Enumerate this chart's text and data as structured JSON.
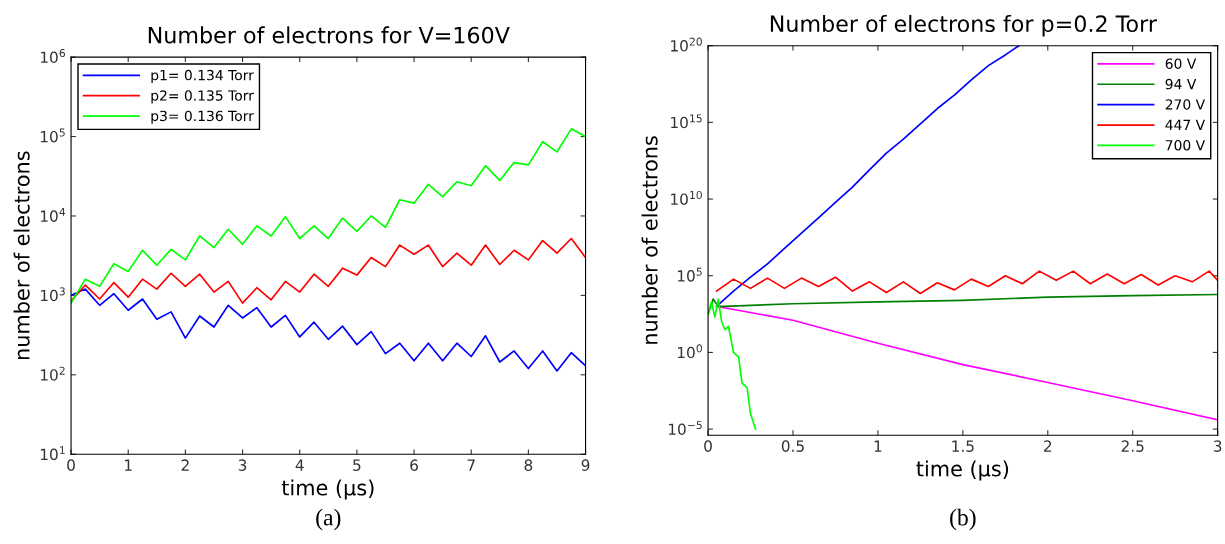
{
  "chart_data": [
    {
      "type": "line",
      "title": "Number of electrons for V=160V",
      "xlabel": "time (μs)",
      "ylabel": "number of electrons",
      "annotations": [
        "(a)"
      ],
      "log": "y",
      "grid": false,
      "legend": "top left",
      "line_style": "solid",
      "marker": "none",
      "xlim": [
        0,
        9
      ],
      "xticks": [
        0,
        1,
        2,
        3,
        4,
        5,
        6,
        7,
        8,
        9
      ],
      "ylim": [
        10,
        1000000
      ],
      "yticks": [
        {
          "value": 10,
          "label": "10$^{1}$"
        },
        {
          "value": 100,
          "label": "10$^{2}$"
        },
        {
          "value": 1000,
          "label": "10$^{3}$"
        },
        {
          "value": 10000,
          "label": "10$^{4}$"
        },
        {
          "value": 100000,
          "label": "10$^{5}$"
        },
        {
          "value": 1000000,
          "label": "10$^{6}$"
        }
      ],
      "x": [
        0,
        0.25,
        0.5,
        0.75,
        1,
        1.25,
        1.5,
        1.75,
        2,
        2.25,
        2.5,
        2.75,
        3,
        3.25,
        3.5,
        3.75,
        4,
        4.25,
        4.5,
        4.75,
        5,
        5.25,
        5.5,
        5.75,
        6,
        6.25,
        6.5,
        6.75,
        7,
        7.25,
        7.5,
        7.75,
        8,
        8.25,
        8.5,
        8.75,
        9
      ],
      "series": [
        {
          "name": "p1= 0.134 Torr",
          "color": "#0000ff",
          "values": [
            1000,
            1200,
            750,
            1050,
            650,
            900,
            500,
            620,
            290,
            550,
            400,
            750,
            520,
            700,
            400,
            560,
            300,
            460,
            280,
            410,
            240,
            350,
            185,
            250,
            150,
            250,
            150,
            250,
            170,
            310,
            145,
            200,
            120,
            200,
            112,
            190,
            130
          ]
        },
        {
          "name": "p2= 0.135 Torr",
          "color": "#ff0000",
          "values": [
            850,
            1350,
            900,
            1450,
            950,
            1600,
            1200,
            1900,
            1300,
            1850,
            1100,
            1500,
            800,
            1250,
            880,
            1500,
            1100,
            1850,
            1300,
            2200,
            1800,
            3000,
            2300,
            4300,
            3300,
            4300,
            2300,
            3400,
            2400,
            4300,
            2450,
            3700,
            2800,
            4900,
            3400,
            5200,
            3000
          ]
        },
        {
          "name": "p3= 0.136 Torr",
          "color": "#00ff00",
          "values": [
            800,
            1600,
            1300,
            2500,
            2000,
            3700,
            2400,
            3800,
            2800,
            5600,
            4000,
            6800,
            4400,
            7500,
            5600,
            9800,
            5200,
            7500,
            5200,
            9400,
            6400,
            10000,
            7200,
            16000,
            14500,
            25000,
            17500,
            27000,
            24000,
            43000,
            28000,
            47000,
            44000,
            86000,
            64000,
            125000,
            100000
          ]
        }
      ]
    },
    {
      "type": "line",
      "title": "Number of electrons for p=0.2 Torr",
      "xlabel": "time (μs)",
      "ylabel": "number of electrons",
      "annotations": [
        "(b)"
      ],
      "log": "y",
      "grid": false,
      "legend": "top right",
      "line_style": "solid",
      "marker": "none",
      "xlim": [
        0,
        3
      ],
      "xticks": [
        0,
        0.5,
        1,
        1.5,
        2,
        2.5,
        3
      ],
      "ylim": [
        4e-06,
        1e+20
      ],
      "yticks": [
        {
          "value": 1e-05,
          "label": "10$^{−5}$"
        },
        {
          "value": 1,
          "label": "10$^{0}$"
        },
        {
          "value": 100000,
          "label": "10$^{5}$"
        },
        {
          "value": 10000000000.0,
          "label": "10$^{10}$"
        },
        {
          "value": 1000000000000000.0,
          "label": "10$^{15}$"
        },
        {
          "value": 1e+20,
          "label": "10$^{20}$"
        }
      ],
      "series": [
        {
          "name": "60 V",
          "color": "#ff00ff",
          "x": [
            0.05,
            0.5,
            1,
            1.5,
            2,
            2.5,
            3
          ],
          "values": [
            1000,
            125,
            4,
            0.16,
            0.011,
            0.0007,
            4e-05
          ]
        },
        {
          "name": "94 V",
          "color": "#008000",
          "x": [
            0,
            0.03,
            0.06,
            0.1,
            0.5,
            1,
            1.5,
            2,
            2.5,
            3
          ],
          "values": [
            300,
            3000,
            1000,
            1000,
            1500,
            2000,
            2500,
            4000,
            5000,
            6000
          ]
        },
        {
          "name": "270 V",
          "color": "#0000ff",
          "x": [
            0.05,
            0.15,
            0.25,
            0.35,
            0.45,
            0.55,
            0.65,
            0.75,
            0.85,
            0.95,
            1.05,
            1.15,
            1.25,
            1.35,
            1.45,
            1.55,
            1.65,
            1.75,
            1.83
          ],
          "values": [
            1000,
            10000,
            80000,
            600000,
            6000000,
            60000000.0,
            600000000.0,
            6000000000.0,
            60000000000.0,
            800000000000.0,
            10000000000000.0,
            80000000000000.0,
            800000000000000.0,
            8000000000000000.0,
            6e+16,
            6e+17,
            5e+18,
            2.5e+19,
            1e+20
          ]
        },
        {
          "name": "447 V",
          "color": "#ff0000",
          "x": [
            0.05,
            0.15,
            0.25,
            0.35,
            0.45,
            0.55,
            0.65,
            0.75,
            0.85,
            0.95,
            1.05,
            1.15,
            1.25,
            1.35,
            1.45,
            1.55,
            1.65,
            1.75,
            1.85,
            1.95,
            2.05,
            2.15,
            2.25,
            2.35,
            2.45,
            2.55,
            2.65,
            2.75,
            2.85,
            2.95,
            3
          ],
          "values": [
            10000,
            60000,
            15000,
            70000,
            15000,
            70000,
            20000,
            80000,
            10000,
            40000,
            8000,
            40000,
            7000,
            35000,
            12000,
            60000,
            20000,
            100000,
            30000,
            200000,
            50000,
            200000,
            30000,
            130000,
            30000,
            120000,
            25000,
            100000,
            40000,
            200000,
            50000
          ]
        },
        {
          "name": "700 V",
          "color": "#00ff00",
          "x": [
            0,
            0.02,
            0.04,
            0.06,
            0.08,
            0.1,
            0.12,
            0.15,
            0.18,
            0.2,
            0.23,
            0.25,
            0.28
          ],
          "values": [
            300,
            2000,
            200,
            3000,
            100,
            30,
            50,
            1,
            0.5,
            0.01,
            0.005,
            0.0001,
            1e-05
          ]
        }
      ]
    }
  ]
}
